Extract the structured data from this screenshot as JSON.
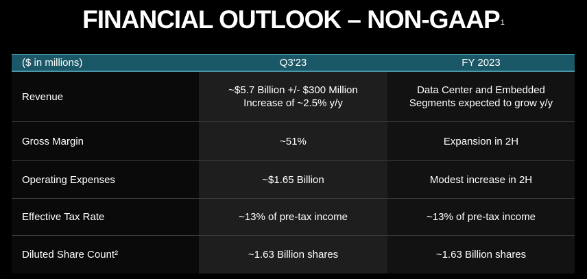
{
  "title": {
    "text": "FINANCIAL OUTLOOK – NON-GAAP",
    "footnote": "1"
  },
  "table": {
    "headers": [
      "($ in millions)",
      "Q3'23",
      "FY 2023"
    ],
    "rows": [
      {
        "label": "Revenue",
        "q3": [
          "~$5.7 Billion +/- $300 Million",
          "Increase of ~2.5% y/y"
        ],
        "fy": [
          "Data Center and Embedded",
          "Segments expected to grow y/y"
        ]
      },
      {
        "label": "Gross Margin",
        "q3": [
          "~51%"
        ],
        "fy": [
          "Expansion in 2H"
        ]
      },
      {
        "label": "Operating Expenses",
        "q3": [
          "~$1.65 Billion"
        ],
        "fy": [
          "Modest increase in 2H"
        ]
      },
      {
        "label": "Effective Tax Rate",
        "q3": [
          "~13% of pre-tax income"
        ],
        "fy": [
          "~13% of pre-tax income"
        ]
      },
      {
        "label": "Diluted Share Count²",
        "q3": [
          "~1.63 Billion shares"
        ],
        "fy": [
          "~1.63 Billion shares"
        ]
      }
    ]
  },
  "colors": {
    "background": "#000000",
    "header_bar": "#1b5867",
    "header_border": "#4a98aa",
    "text": "#ffffff"
  }
}
